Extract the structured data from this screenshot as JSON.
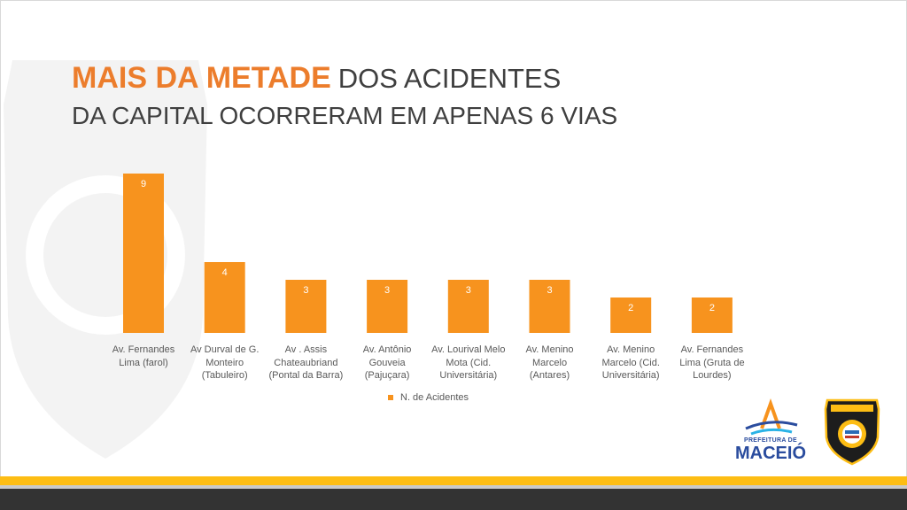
{
  "title": {
    "highlight": "MAIS DA METADE",
    "rest": "DOS ACIDENTES",
    "line2": "DA CAPITAL OCORRERAM EM APENAS 6 VIAS"
  },
  "colors": {
    "accent": "#ec7d2c",
    "bar": "#f7931e",
    "text": "#595959",
    "footer_yellow": "#fdbd14",
    "footer_dark": "#333333"
  },
  "chart_data": {
    "type": "bar",
    "categories": [
      [
        "Av. Fernandes",
        "Lima (farol)"
      ],
      [
        "Av Durval de G.",
        "Monteiro",
        "(Tabuleiro)"
      ],
      [
        "Av . Assis",
        "Chateaubriand",
        "(Pontal da Barra)"
      ],
      [
        "Av. Antônio",
        "Gouveia",
        "(Pajuçara)"
      ],
      [
        "Av. Lourival Melo",
        "Mota (Cid.",
        "Universitária)"
      ],
      [
        "Av. Menino",
        "Marcelo",
        "(Antares)"
      ],
      [
        "Av. Menino",
        "Marcelo (Cid.",
        "Universitária)"
      ],
      [
        "Av. Fernandes",
        "Lima (Gruta de",
        "Lourdes)"
      ]
    ],
    "series": [
      {
        "name": "N. de Acidentes",
        "values": [
          9,
          4,
          3,
          3,
          3,
          3,
          2,
          2
        ]
      }
    ],
    "ylim": [
      0,
      9
    ],
    "show_data_labels": true,
    "grid": false,
    "legend_position": "bottom"
  },
  "legend": {
    "label": "N. de Acidentes"
  },
  "logos": {
    "prefeitura_sub": "PREFEITURA DE",
    "prefeitura_main": "MACEIÓ",
    "prefeitura_icon": "prefeitura-maceio-logo",
    "transito_icon": "transito-badge-logo"
  }
}
